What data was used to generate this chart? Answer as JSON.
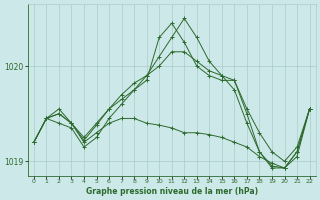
{
  "title": "Graphe pression niveau de la mer (hPa)",
  "background_color": "#cce8e8",
  "grid_color": "#aacccc",
  "line_color": "#2d6a2d",
  "marker_color": "#2d6a2d",
  "xlim": [
    -0.5,
    22.5
  ],
  "ylim": [
    1018.85,
    1020.65
  ],
  "yticks": [
    1019,
    1020
  ],
  "xticks": [
    0,
    1,
    2,
    3,
    4,
    5,
    6,
    7,
    8,
    9,
    10,
    11,
    12,
    13,
    14,
    15,
    16,
    17,
    18,
    19,
    20,
    21,
    22
  ],
  "series": [
    [
      1019.2,
      1019.45,
      1019.55,
      1019.4,
      1019.25,
      1019.4,
      1019.55,
      1019.65,
      1019.75,
      1019.85,
      1020.3,
      1020.45,
      1020.25,
      1020.0,
      1019.9,
      1019.85,
      1019.85,
      1019.55,
      1019.3,
      1019.1,
      1019.0,
      1019.15,
      1019.55
    ],
    [
      1019.2,
      1019.45,
      1019.5,
      1019.4,
      1019.2,
      1019.3,
      1019.4,
      1019.45,
      1019.45,
      1019.4,
      1019.38,
      1019.35,
      1019.3,
      1019.3,
      1019.28,
      1019.25,
      1019.2,
      1019.15,
      1019.05,
      1018.98,
      1018.93,
      1019.05,
      1019.55
    ],
    [
      1019.2,
      1019.45,
      1019.4,
      1019.35,
      1019.15,
      1019.25,
      1019.45,
      1019.6,
      1019.75,
      1019.9,
      1020.0,
      1020.15,
      1020.15,
      1020.05,
      1019.95,
      1019.9,
      1019.85,
      1019.5,
      1019.1,
      1018.93,
      1018.93,
      1019.1,
      1019.55
    ],
    [
      1019.2,
      1019.45,
      1019.5,
      1019.4,
      1019.22,
      1019.38,
      1019.55,
      1019.7,
      1019.82,
      1019.9,
      1020.1,
      1020.3,
      1020.5,
      1020.3,
      1020.05,
      1019.9,
      1019.75,
      1019.4,
      1019.1,
      1018.95,
      1018.93,
      1019.1,
      1019.55
    ]
  ]
}
